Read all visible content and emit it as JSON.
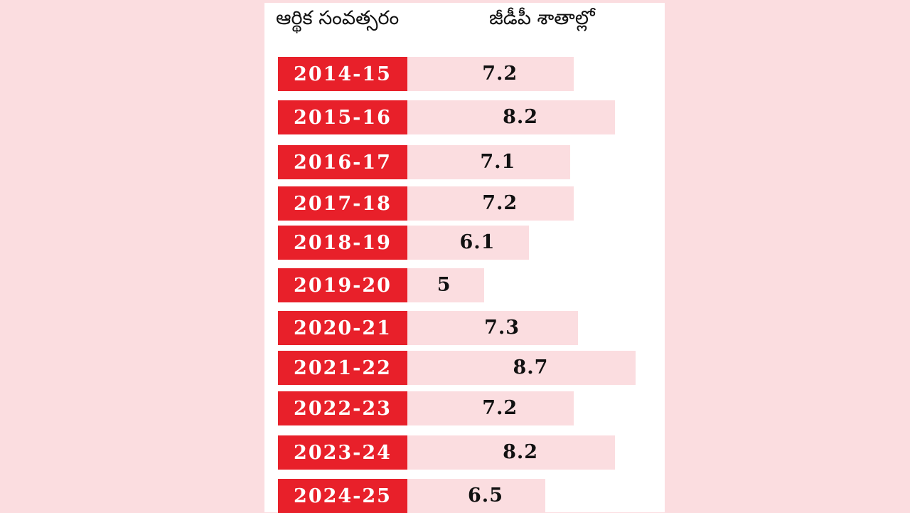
{
  "header": {
    "year_label": "ఆర్థిక సంవత్సరం",
    "gdp_label": "జీడీపీ శాతాల్లో"
  },
  "colors": {
    "background": "#fbdde0",
    "label_fill": "#e8202a",
    "bar_fill": "#fbdde0",
    "panel": "#ffffff"
  },
  "chart_data": {
    "type": "bar",
    "orientation": "horizontal",
    "title": "",
    "xlabel": "",
    "ylabel": "",
    "categories": [
      "2014-15",
      "2015-16",
      "2016-17",
      "2017-18",
      "2018-19",
      "2019-20",
      "2020-21",
      "2021-22",
      "2022-23",
      "2023-24",
      "2024-25"
    ],
    "values": [
      7.2,
      8.2,
      7.1,
      7.2,
      6.1,
      5,
      7.3,
      8.7,
      7.2,
      8.2,
      6.5
    ],
    "value_labels": [
      "7.2",
      "8.2",
      "7.1",
      "7.2",
      "6.1",
      "5",
      "7.3",
      "8.7",
      "7.2",
      "8.2",
      "6.5"
    ],
    "xlim": [
      0,
      8.7
    ]
  }
}
